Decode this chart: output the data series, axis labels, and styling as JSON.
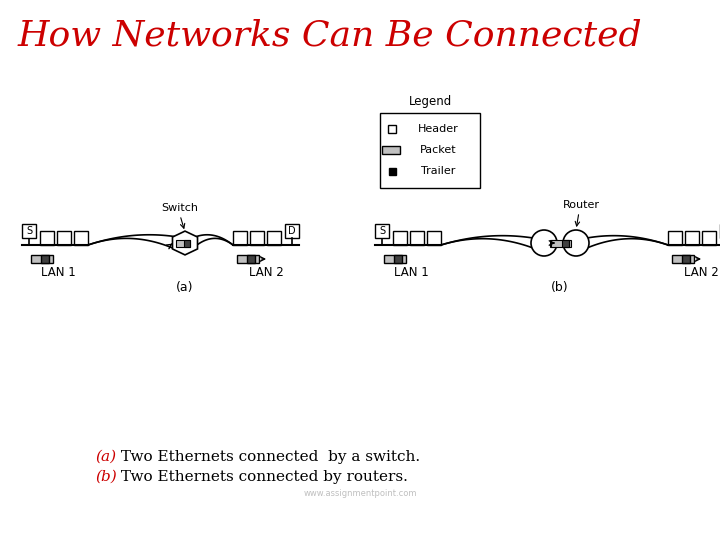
{
  "title": "How Networks Can Be Connected",
  "title_color": "#cc0000",
  "title_fontsize": 26,
  "caption_a_prefix": "(a)",
  "caption_a_text": " Two Ethernets connected  by a switch.",
  "caption_b_prefix": "(b)",
  "caption_b_text": " Two Ethernets connected by routers.",
  "watermark": "www.assignmentpoint.com",
  "bg_color": "#ffffff",
  "legend_title": "Legend",
  "legend_items": [
    "Header",
    "Packet",
    "Trailer"
  ],
  "label_switch": "Switch",
  "label_router": "Router",
  "label_lan1_a": "LAN 1",
  "label_lan2_a": "LAN 2",
  "label_a": "(a)",
  "label_lan1_b": "LAN 1",
  "label_lan2_b": "LAN 2",
  "label_b": "(b)",
  "node_color": "#ffffff",
  "packet_gray": "#c0c0c0",
  "packet_dark": "#404040"
}
